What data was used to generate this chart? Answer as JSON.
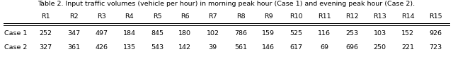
{
  "title": "Table 2. Input traffic volumes (vehicle per hour) in morning peak hour (Case 1) and evening peak hour (Case 2).",
  "columns": [
    "",
    "R1",
    "R2",
    "R3",
    "R4",
    "R5",
    "R6",
    "R7",
    "R8",
    "R9",
    "R10",
    "R11",
    "R12",
    "R13",
    "R14",
    "R15"
  ],
  "rows": [
    [
      "Case 1",
      "252",
      "347",
      "497",
      "184",
      "845",
      "180",
      "102",
      "786",
      "159",
      "525",
      "116",
      "253",
      "103",
      "152",
      "926"
    ],
    [
      "Case 2",
      "327",
      "361",
      "426",
      "135",
      "543",
      "142",
      "39",
      "561",
      "146",
      "617",
      "69",
      "696",
      "250",
      "221",
      "723"
    ]
  ],
  "background_color": "#ffffff",
  "title_fontsize": 6.8,
  "cell_fontsize": 6.8,
  "fig_width": 6.4,
  "fig_height": 0.84,
  "dpi": 100
}
